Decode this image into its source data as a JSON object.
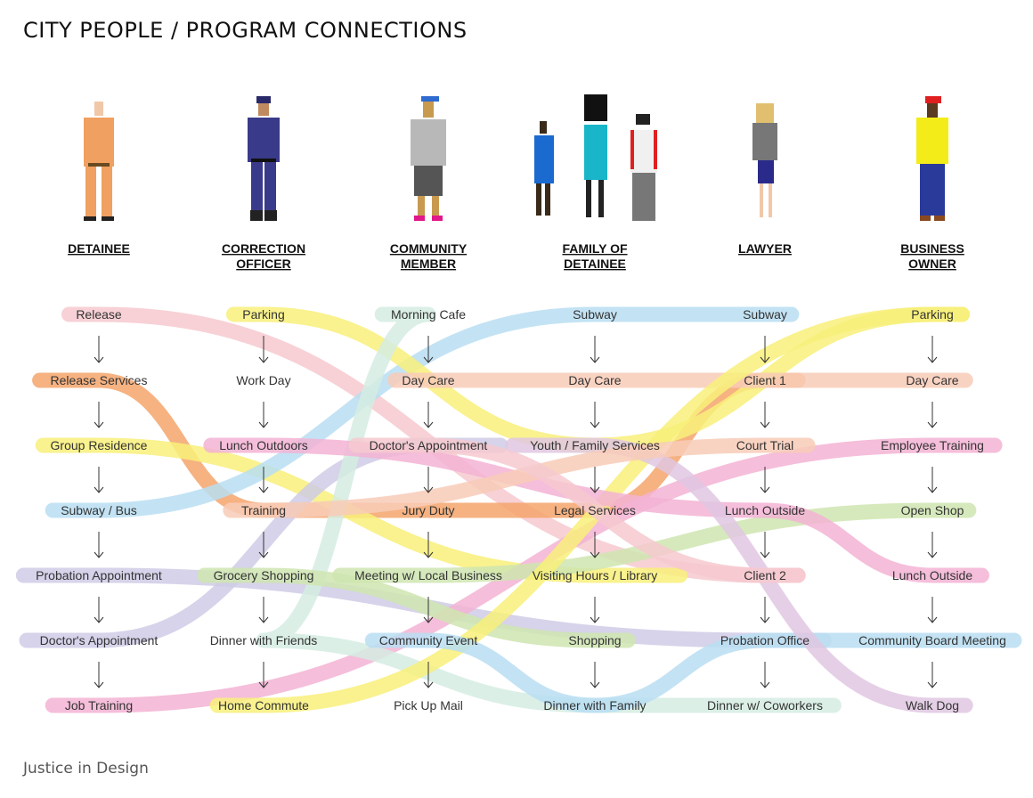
{
  "title": "CITY PEOPLE / PROGRAM CONNECTIONS",
  "footer": "Justice in Design",
  "colors": {
    "pink_light": "#f6c9cf",
    "orange": "#f5a46b",
    "salmon": "#f8cbb7",
    "yellow": "#f8f07a",
    "blue": "#b9def2",
    "lavender": "#cfcbe6",
    "green": "#cfe5b0",
    "mint": "#d5ece2",
    "magenta": "#f3b3d3",
    "purple": "#e0c7e2"
  },
  "columns": [
    {
      "label_lines": [
        "DETAINEE"
      ],
      "icon": "detainee-figure-icon",
      "items": [
        "Release",
        "Release Services",
        "Group Residence",
        "Subway / Bus",
        "Probation Appointment",
        "Doctor's Appointment",
        "Job Training"
      ]
    },
    {
      "label_lines": [
        "CORRECTION",
        "OFFICER"
      ],
      "icon": "correction-officer-figure-icon",
      "items": [
        "Parking",
        "Work Day",
        "Lunch Outdoors",
        "Training",
        "Grocery Shopping",
        "Dinner with Friends",
        "Home Commute"
      ]
    },
    {
      "label_lines": [
        "COMMUNITY",
        "MEMBER"
      ],
      "icon": "community-member-figure-icon",
      "items": [
        "Morning Cafe",
        "Day Care",
        "Doctor's Appointment",
        "Jury Duty",
        "Meeting w/ Local Business",
        "Community Event",
        "Pick Up Mail"
      ]
    },
    {
      "label_lines": [
        "FAMILY OF",
        "DETAINEE"
      ],
      "icon": "family-figures-icon",
      "items": [
        "Subway",
        "Day Care",
        "Youth / Family Services",
        "Legal Services",
        "Visiting Hours / Library",
        "Shopping",
        "Dinner with Family"
      ]
    },
    {
      "label_lines": [
        "LAWYER"
      ],
      "icon": "lawyer-figure-icon",
      "items": [
        "Subway",
        "Client 1",
        "Court Trial",
        "Lunch Outside",
        "Client 2",
        "Probation Office",
        "Dinner w/ Coworkers"
      ]
    },
    {
      "label_lines": [
        "BUSINESS",
        "OWNER"
      ],
      "icon": "business-owner-figure-icon",
      "items": [
        "Parking",
        "Day Care",
        "Employee Training",
        "Open Shop",
        "Lunch Outside",
        "Community Board Meeting",
        "Walk Dog"
      ]
    }
  ],
  "connections": [
    {
      "color": "pink_light",
      "route": [
        [
          0,
          0
        ],
        [
          4,
          4
        ]
      ]
    },
    {
      "color": "orange",
      "route": [
        [
          0,
          1
        ],
        [
          1,
          3
        ],
        [
          3,
          3
        ],
        [
          4,
          1
        ]
      ]
    },
    {
      "color": "yellow",
      "route": [
        [
          0,
          2
        ],
        [
          3,
          4
        ]
      ]
    },
    {
      "color": "blue",
      "route": [
        [
          0,
          3
        ],
        [
          3,
          0
        ],
        [
          4,
          0
        ]
      ]
    },
    {
      "color": "lavender",
      "route": [
        [
          0,
          4
        ],
        [
          4,
          5
        ]
      ]
    },
    {
      "color": "lavender",
      "route": [
        [
          0,
          5
        ],
        [
          2,
          2
        ]
      ]
    },
    {
      "color": "magenta",
      "route": [
        [
          0,
          6
        ],
        [
          5,
          2
        ]
      ]
    },
    {
      "color": "yellow",
      "route": [
        [
          1,
          0
        ],
        [
          3,
          2
        ],
        [
          5,
          0
        ]
      ]
    },
    {
      "color": "salmon",
      "route": [
        [
          2,
          1
        ],
        [
          3,
          1
        ],
        [
          5,
          1
        ]
      ]
    },
    {
      "color": "mint",
      "route": [
        [
          2,
          0
        ],
        [
          1,
          5
        ],
        [
          3,
          6
        ],
        [
          4,
          6
        ]
      ]
    },
    {
      "color": "green",
      "route": [
        [
          1,
          4
        ],
        [
          3,
          5
        ]
      ]
    },
    {
      "color": "green",
      "route": [
        [
          2,
          4
        ],
        [
          5,
          3
        ]
      ]
    },
    {
      "color": "yellow",
      "route": [
        [
          1,
          6
        ],
        [
          5,
          0
        ]
      ]
    },
    {
      "color": "blue",
      "route": [
        [
          2,
          5
        ],
        [
          3,
          6
        ],
        [
          4,
          5
        ],
        [
          5,
          5
        ]
      ]
    },
    {
      "color": "magenta",
      "route": [
        [
          1,
          2
        ],
        [
          4,
          3
        ],
        [
          5,
          4
        ]
      ]
    },
    {
      "color": "purple",
      "route": [
        [
          3,
          2
        ],
        [
          5,
          6
        ]
      ]
    },
    {
      "color": "salmon",
      "route": [
        [
          1,
          3
        ],
        [
          4,
          2
        ]
      ]
    },
    {
      "color": "pink_light",
      "route": [
        [
          2,
          2
        ],
        [
          4,
          4
        ]
      ]
    }
  ]
}
